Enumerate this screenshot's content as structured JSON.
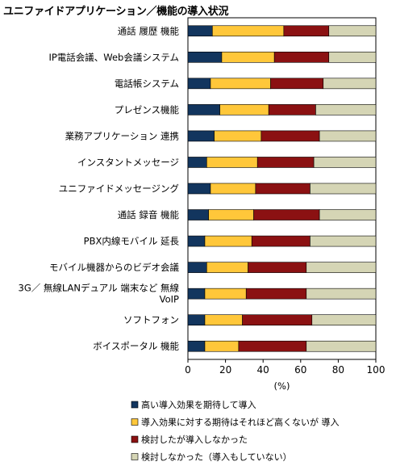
{
  "chart_data": {
    "type": "bar",
    "stacked": true,
    "orientation": "horizontal",
    "title": "ユニファイドアプリケーション／機能の導入状況",
    "xlabel": "(%)",
    "ylabel": "",
    "xlim": [
      0,
      100
    ],
    "xticks": [
      "0",
      "20",
      "40",
      "60",
      "80",
      "100"
    ],
    "grid": false,
    "legend_position": "bottom",
    "categories": [
      [
        "通話 履歴 機能"
      ],
      [
        "IP電話会議、Web会議システム"
      ],
      [
        "電話帳システム"
      ],
      [
        "プレゼンス機能"
      ],
      [
        "業務アプリケーション 連携"
      ],
      [
        "インスタントメッセージ"
      ],
      [
        "ユニファイドメッセージング"
      ],
      [
        "通話 録音 機能"
      ],
      [
        "PBX内線モバイル 延長"
      ],
      [
        "モバイル機器からのビデオ会議"
      ],
      [
        "3G／ 無線LANデュアル 端末など 無線",
        "VoIP"
      ],
      [
        "ソフトフォン"
      ],
      [
        "ボイスポータル 機能"
      ]
    ],
    "series": [
      {
        "name": "高い導入効果を期待して導入",
        "color": "#12355e",
        "values": [
          13,
          18,
          12,
          17,
          14,
          10,
          12,
          11,
          9,
          10,
          9,
          9,
          9
        ]
      },
      {
        "name": "導入効果に対する期待はそれほど高くないが 導入",
        "color": "#ffc73a",
        "values": [
          38,
          28,
          32,
          26,
          25,
          27,
          24,
          24,
          25,
          22,
          22,
          20,
          18
        ]
      },
      {
        "name": "検討したが導入しなかった",
        "color": "#8b1112",
        "values": [
          24,
          29,
          28,
          25,
          31,
          30,
          29,
          35,
          31,
          31,
          32,
          37,
          36
        ]
      },
      {
        "name": "検討しなかった（導入もしていない）",
        "color": "#d5d5b5",
        "values": [
          25,
          25,
          28,
          32,
          30,
          33,
          35,
          30,
          35,
          37,
          37,
          34,
          37
        ]
      }
    ]
  }
}
